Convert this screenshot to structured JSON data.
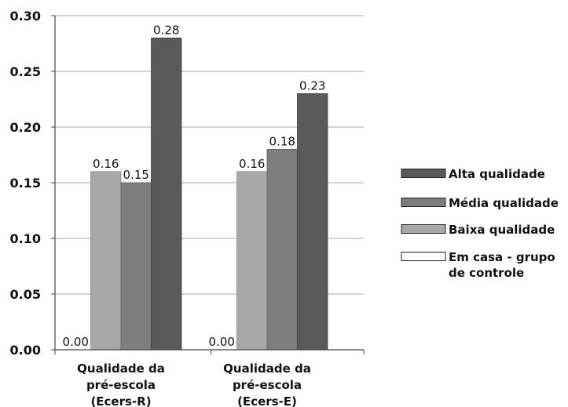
{
  "chart_data": {
    "type": "bar",
    "categories": [
      [
        "Qualidade da",
        "pré-escola",
        "(Ecers-R)"
      ],
      [
        "Qualidade da",
        "pré-escola",
        "(Ecers-E)"
      ]
    ],
    "series": [
      {
        "name": "Em casa - grupo de controle",
        "legend_lines": [
          "Em casa - grupo",
          "de controle"
        ],
        "values": [
          0.0,
          0.0
        ],
        "labels": [
          "0.00",
          "0.00"
        ],
        "color": "#ffffff",
        "stroke": "#555555"
      },
      {
        "name": "Baixa qualidade",
        "legend_lines": [
          "Baixa qualidade"
        ],
        "values": [
          0.16,
          0.16
        ],
        "labels": [
          "0.16",
          "0.16"
        ],
        "color": "#a8a8a8",
        "stroke": "#888888"
      },
      {
        "name": "Média qualidade",
        "legend_lines": [
          "Média qualidade"
        ],
        "values": [
          0.15,
          0.18
        ],
        "labels": [
          "0.15",
          "0.18"
        ],
        "color": "#7e7e7e",
        "stroke": "#606060"
      },
      {
        "name": "Alta qualidade",
        "legend_lines": [
          "Alta qualidade"
        ],
        "values": [
          0.28,
          0.23
        ],
        "labels": [
          "0.28",
          "0.23"
        ],
        "color": "#5a5a5a",
        "stroke": "#3f3f3f"
      }
    ],
    "legend_order": [
      3,
      2,
      1,
      0
    ],
    "yticks": [
      "0.00",
      "0.05",
      "0.10",
      "0.15",
      "0.20",
      "0.25",
      "0.30"
    ],
    "ylim": [
      0,
      0.3
    ],
    "grid": true,
    "legend_position": "right",
    "title": "",
    "xlabel": "",
    "ylabel": "",
    "colors": {
      "grid": "#aaaaaa",
      "axis": "#444444",
      "text": "#111111"
    }
  }
}
